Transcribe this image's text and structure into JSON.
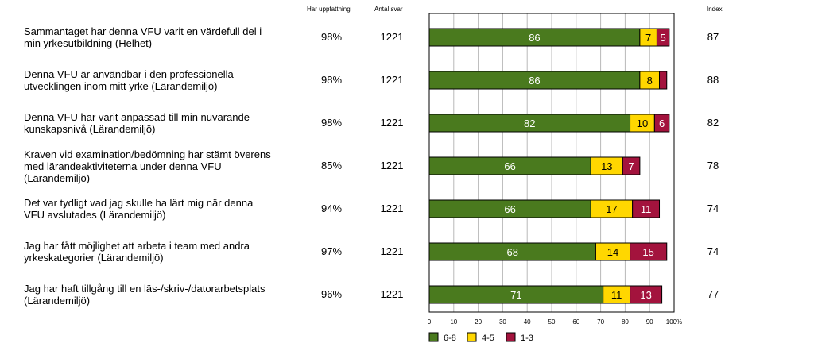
{
  "headers": {
    "har_uppfattning": "Har uppfattning",
    "antal_svar": "Antal svar",
    "index": "Index"
  },
  "chart_data": {
    "type": "bar",
    "stacked": true,
    "orientation": "horizontal",
    "categories": [
      "Sammantaget har denna VFU varit en värdefull del i min yrkesutbildning (Helhet)",
      "Denna VFU är användbar i den professionella utvecklingen inom mitt yrke (Lärandemiljö)",
      "Denna VFU har varit anpassad till min nuvarande kunskapsnivå (Lärandemiljö)",
      "Kraven vid examination/bedömning har stämt överens med lärandeaktiviteterna under denna VFU (Lärandemiljö)",
      "Det var tydligt vad jag skulle ha lärt mig när denna VFU avslutades (Lärandemiljö)",
      "Jag har fått möjlighet att arbeta i team med andra yrkeskategorier (Lärandemiljö)",
      "Jag har haft tillgång till en läs-/skriv-/datorarbetsplats (Lärandemiljö)"
    ],
    "rows": [
      {
        "lines": [
          "Sammantaget har denna VFU varit en värdefull del i",
          "min yrkesutbildning (Helhet)"
        ],
        "har_uppfattning": "98%",
        "antal_svar": "1221",
        "index": "87"
      },
      {
        "lines": [
          "Denna VFU är användbar i den professionella",
          "utvecklingen inom mitt yrke (Lärandemiljö)"
        ],
        "har_uppfattning": "98%",
        "antal_svar": "1221",
        "index": "88"
      },
      {
        "lines": [
          "Denna VFU har varit anpassad till min nuvarande",
          "kunskapsnivå (Lärandemiljö)"
        ],
        "har_uppfattning": "98%",
        "antal_svar": "1221",
        "index": "82"
      },
      {
        "lines": [
          "Kraven vid examination/bedömning har stämt överens",
          "med lärandeaktiviteterna under denna VFU",
          "(Lärandemiljö)"
        ],
        "har_uppfattning": "85%",
        "antal_svar": "1221",
        "index": "78"
      },
      {
        "lines": [
          "Det var tydligt vad jag skulle ha lärt mig när denna",
          "VFU avslutades (Lärandemiljö)"
        ],
        "har_uppfattning": "94%",
        "antal_svar": "1221",
        "index": "74"
      },
      {
        "lines": [
          "Jag har fått möjlighet att arbeta i team med andra",
          "yrkeskategorier (Lärandemiljö)"
        ],
        "har_uppfattning": "97%",
        "antal_svar": "1221",
        "index": "74"
      },
      {
        "lines": [
          "Jag har haft tillgång till en läs-/skriv-/datorarbetsplats",
          "(Lärandemiljö)"
        ],
        "har_uppfattning": "96%",
        "antal_svar": "1221",
        "index": "77"
      }
    ],
    "series": [
      {
        "name": "6-8",
        "color": "#4a7a1e",
        "values": [
          86,
          86,
          82,
          66,
          66,
          68,
          71
        ],
        "labels": [
          "86",
          "86",
          "82",
          "66",
          "66",
          "68",
          "71"
        ]
      },
      {
        "name": "4-5",
        "color": "#ffd700",
        "values": [
          7,
          8,
          10,
          13,
          17,
          14,
          11
        ],
        "labels": [
          "7",
          "8",
          "10",
          "13",
          "17",
          "14",
          "11"
        ]
      },
      {
        "name": "1-3",
        "color": "#a3133d",
        "values": [
          5,
          3,
          6,
          7,
          11,
          15,
          13
        ],
        "labels": [
          "5",
          "",
          "6",
          "7",
          "11",
          "15",
          "13"
        ]
      }
    ],
    "xlim": [
      0,
      100
    ],
    "xticks": [
      "0",
      "10",
      "20",
      "30",
      "40",
      "50",
      "60",
      "70",
      "80",
      "90",
      "100%"
    ],
    "grid": true,
    "legend_position": "bottom"
  }
}
